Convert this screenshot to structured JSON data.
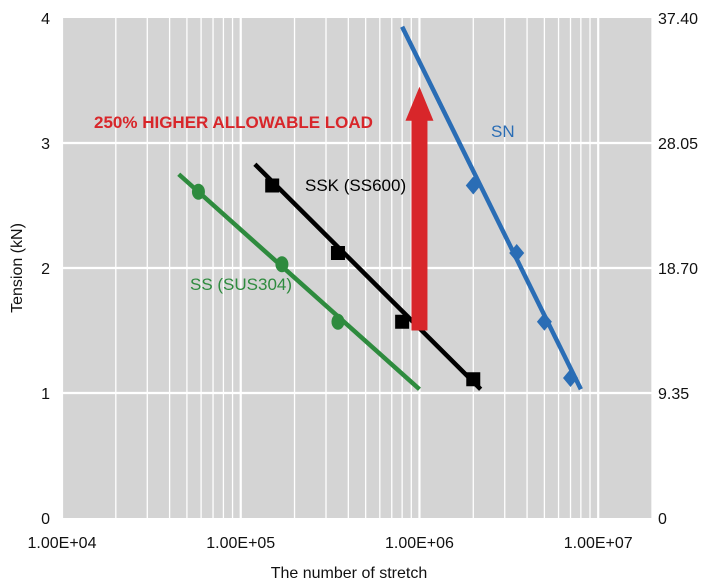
{
  "chart_data": {
    "type": "line",
    "title": "",
    "xlabel": "The number of stretch",
    "ylabel": "Tension (kN)",
    "x_scale": "log",
    "xlim": [
      10000,
      20000000
    ],
    "ylim": [
      0,
      4
    ],
    "y2lim": [
      0,
      37.4
    ],
    "grid": true,
    "legend": "none",
    "x_tick_labels": [
      "1.00E+04",
      "1.00E+05",
      "1.00E+06",
      "1.00E+07"
    ],
    "x_ticks": [
      10000,
      100000,
      1000000,
      10000000
    ],
    "y_tick_labels": [
      "0",
      "1",
      "2",
      "3",
      "4"
    ],
    "y_ticks": [
      0,
      1,
      2,
      3,
      4
    ],
    "y2_tick_labels": [
      "0",
      "9.35",
      "18.70",
      "28.05",
      "37.40"
    ],
    "y2_ticks": [
      0,
      9.35,
      18.7,
      28.05,
      37.4
    ],
    "series": [
      {
        "name": "SS (SUS304)",
        "color": "#2e8b3e",
        "marker": "circle",
        "line": {
          "x": [
            45000,
            1000000
          ],
          "y": [
            2.75,
            1.03
          ]
        },
        "points": {
          "x": [
            58000,
            170000,
            350000
          ],
          "y": [
            2.61,
            2.03,
            1.57
          ]
        }
      },
      {
        "name": "SSK (SS600)",
        "color": "#000000",
        "marker": "square",
        "line": {
          "x": [
            120000,
            2200000
          ],
          "y": [
            2.83,
            1.03
          ]
        },
        "points": {
          "x": [
            150000,
            350000,
            800000,
            2000000
          ],
          "y": [
            2.66,
            2.12,
            1.57,
            1.11
          ]
        }
      },
      {
        "name": "SN",
        "color": "#2a6db5",
        "marker": "diamond",
        "line": {
          "x": [
            800000,
            8000000
          ],
          "y": [
            3.93,
            1.03
          ]
        },
        "points": {
          "x": [
            2000000,
            3500000,
            5000000,
            7000000
          ],
          "y": [
            2.66,
            2.12,
            1.57,
            1.12
          ]
        }
      }
    ],
    "annotation": {
      "text": "250% HIGHER ALLOWABLE LOAD",
      "color": "#d8262a",
      "arrow_x": 1000000,
      "arrow_y": [
        1.5,
        3.45
      ]
    }
  }
}
